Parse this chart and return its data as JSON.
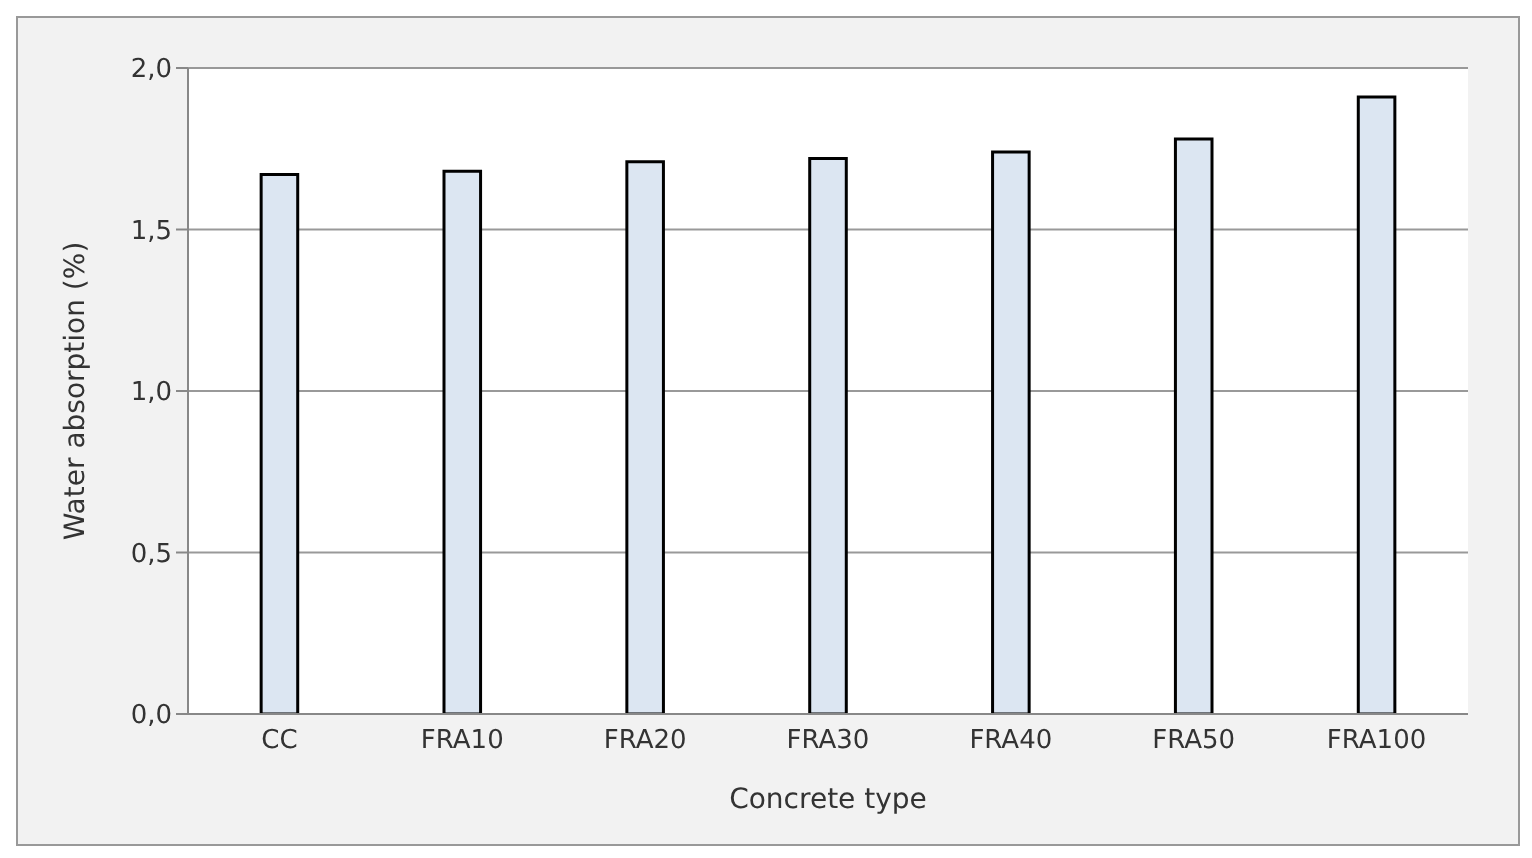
{
  "chart_data": {
    "type": "bar",
    "xlabel": "Concrete type",
    "ylabel": "Water absorption (%)",
    "categories": [
      "CC",
      "FRA10",
      "FRA20",
      "FRA30",
      "FRA40",
      "FRA50",
      "FRA100"
    ],
    "values": [
      1.67,
      1.68,
      1.71,
      1.72,
      1.74,
      1.78,
      1.91
    ],
    "colors": [
      "#dce6f2",
      "#dce6f2",
      "#dce6f2",
      "#dce6f2",
      "#dce6f2",
      "#dce6f2",
      "#dce6f2"
    ],
    "ylim": [
      0,
      2
    ],
    "yticks": [
      {
        "value": 0,
        "label": "0,0"
      },
      {
        "value": 0.5,
        "label": "0,5"
      },
      {
        "value": 1,
        "label": "1,0"
      },
      {
        "value": 1.5,
        "label": "1,5"
      },
      {
        "value": 2,
        "label": "2,0"
      }
    ],
    "grid": "y"
  }
}
